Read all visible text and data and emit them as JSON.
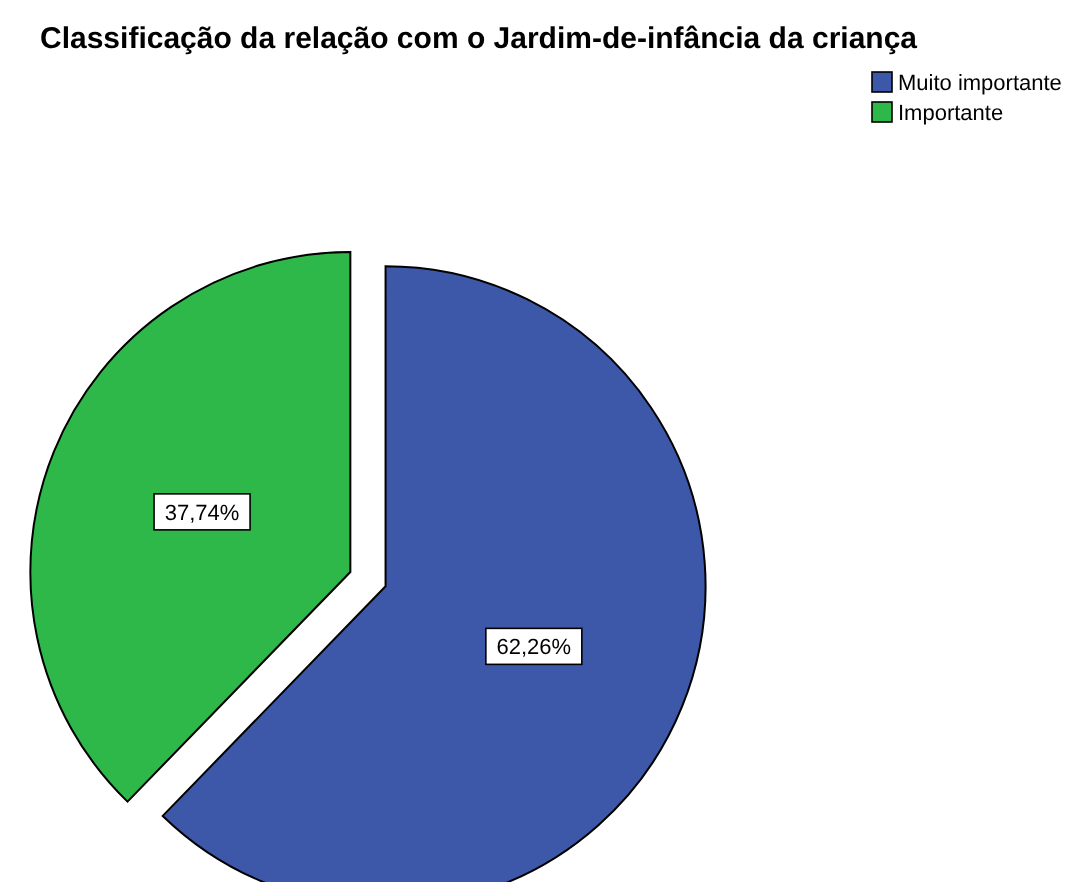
{
  "chart_data": {
    "type": "pie",
    "title": "Classificação da relação com o Jardim-de-infância da criança",
    "categories": [
      "Muito importante",
      "Importante"
    ],
    "values": [
      62.26,
      37.74
    ],
    "value_labels": [
      "62,26%",
      "37,74%"
    ],
    "colors": [
      "#3e58a9",
      "#2fb84a"
    ],
    "legend": "top right"
  }
}
